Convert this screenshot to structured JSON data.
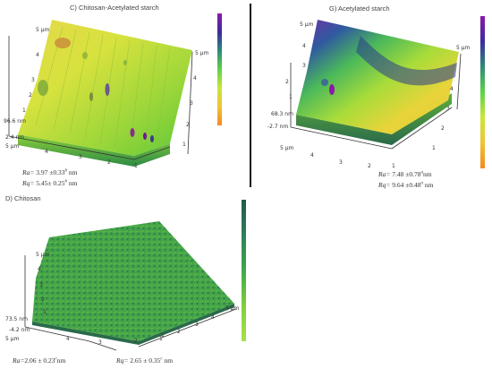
{
  "panels": {
    "c": {
      "title": "C) Chitosan-Acetylated starch",
      "zmax": "96.6 nm",
      "zmin": "2.4 nm",
      "x_ticks": [
        "5 μm",
        "4",
        "3",
        "2",
        "1"
      ],
      "y_ticks": [
        "5 μm",
        "4",
        "3",
        "2",
        "1"
      ],
      "left_ticks": [
        "5 μm",
        "4",
        "3",
        "2",
        "1"
      ],
      "ra_label": "Ra=",
      "ra_value": "3.97 ±0.33",
      "ra_sup": "b",
      "ra_unit": " nm",
      "rq_label": "Rq=",
      "rq_value": "5.45± 0.25",
      "rq_sup": "b",
      "rq_unit": " nm"
    },
    "g": {
      "title": "G) Acetylated starch",
      "zmax": "68.3 nm",
      "zmin": "-2.7 nm",
      "x_ticks": [
        "5 μm",
        "4",
        "3",
        "2",
        "1"
      ],
      "y_ticks": [
        "5 μm",
        "4",
        "3",
        "2",
        "1"
      ],
      "left_ticks": [
        "5 μm",
        "4",
        "3",
        "2",
        "1"
      ],
      "ra_label": "Ra=",
      "ra_value": "7.48 ±0.78",
      "ra_sup": "a",
      "ra_unit": "nm",
      "rq_label": "Rq=",
      "rq_value": "9.64 ±0.48",
      "rq_sup": "a",
      "rq_unit": " nm"
    },
    "d": {
      "title": "D) Chitosan",
      "zmax": "73.5 nm",
      "zmin": "-4.2 nm",
      "x_ticks": [
        "5 μm",
        "4",
        "3",
        "2",
        "1"
      ],
      "y_ticks": [
        "5 μm",
        "4",
        "3",
        "2",
        "1"
      ],
      "left_ticks": [
        "5 μm",
        "4",
        "3",
        "2",
        "1"
      ],
      "ra_label": "Ra=",
      "ra_value": "2.06 ± 0.23",
      "ra_sup": "c",
      "ra_unit": "nm",
      "rq_label": "Rq=",
      "rq_value": "2.65 ± 0.35",
      "rq_sup": "c",
      "rq_unit": " nm"
    }
  },
  "colors": {
    "rainbow_scale": [
      "#8a1aa8",
      "#3a2b9e",
      "#2f8a7a",
      "#5fd24a",
      "#c9e63a",
      "#f0c436",
      "#f08a20"
    ],
    "green_scale": [
      "#1f5a4a",
      "#2f7f5a",
      "#3fa84a",
      "#7fd03a",
      "#a8e04a"
    ]
  }
}
